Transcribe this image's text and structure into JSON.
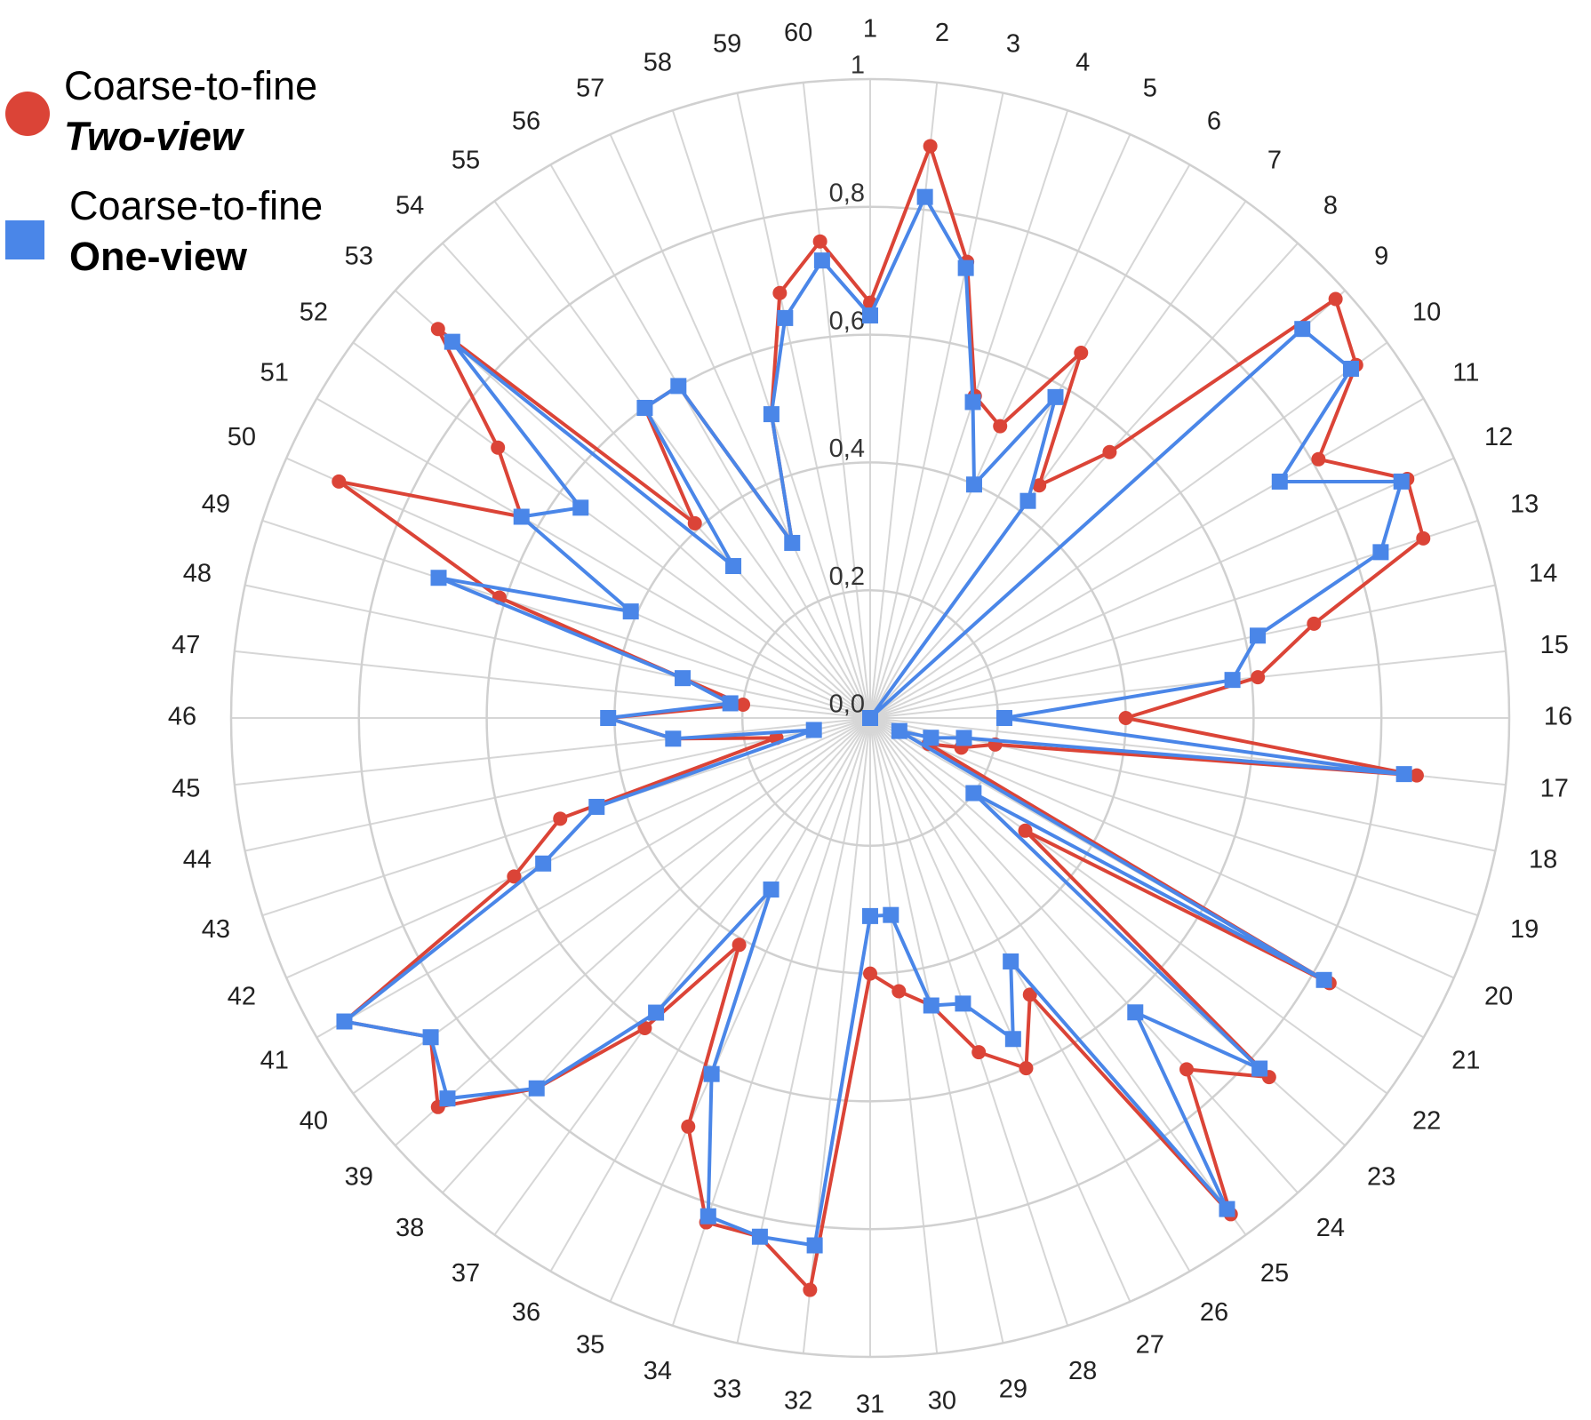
{
  "chart_data": {
    "type": "radar",
    "categories": [
      "1",
      "2",
      "3",
      "4",
      "5",
      "6",
      "7",
      "8",
      "9",
      "10",
      "11",
      "12",
      "13",
      "14",
      "15",
      "16",
      "17",
      "18",
      "19",
      "20",
      "21",
      "22",
      "23",
      "24",
      "25",
      "26",
      "27",
      "28",
      "29",
      "30",
      "31",
      "32",
      "33",
      "34",
      "35",
      "36",
      "37",
      "38",
      "39",
      "40",
      "41",
      "42",
      "43",
      "44",
      "45",
      "46",
      "47",
      "48",
      "49",
      "50",
      "51",
      "52",
      "53",
      "54",
      "55",
      "56",
      "57",
      "58",
      "59",
      "60"
    ],
    "ylim": [
      0,
      1
    ],
    "yticks": [
      {
        "value": 0,
        "label": "0,0"
      },
      {
        "value": 0.2,
        "label": "0,2"
      },
      {
        "value": 0.4,
        "label": "0,4"
      },
      {
        "value": 0.6,
        "label": "0,6"
      },
      {
        "value": 0.8,
        "label": "0,8"
      },
      1
    ],
    "grid": true,
    "legend": "upper left",
    "series": [
      {
        "name": [
          "Coarse-to-fine",
          "Two-view"
        ],
        "color": "#db4437",
        "marker": "circle",
        "values": [
          0.65,
          0.9,
          0.73,
          0.53,
          0.5,
          0.66,
          0.45,
          0.56,
          0.98,
          0.94,
          0.81,
          0.92,
          0.91,
          0.71,
          0.61,
          0.4,
          0.86,
          0.2,
          0.15,
          0.1,
          0.83,
          0.3,
          0.84,
          0.74,
          0.96,
          0.5,
          0.6,
          0.55,
          0.46,
          0.43,
          0.4,
          0.9,
          0.83,
          0.83,
          0.7,
          0.41,
          0.6,
          0.78,
          0.91,
          0.85,
          0.95,
          0.61,
          0.51,
          0.15,
          0.31,
          0.41,
          0.2,
          0.3,
          0.61,
          0.91,
          0.63,
          0.72,
          0.91,
          0.41,
          0.6,
          0.6,
          0.3,
          0.5,
          0.68,
          0.75
        ]
      },
      {
        "name": [
          "Coarse-to-fine",
          "One-view"
        ],
        "color": "#4a86e8",
        "marker": "square",
        "values": [
          0.63,
          0.82,
          0.72,
          0.52,
          0.4,
          0.58,
          0.42,
          0.0,
          0.91,
          0.93,
          0.74,
          0.91,
          0.84,
          0.62,
          0.57,
          0.21,
          0.84,
          0.15,
          0.1,
          0.05,
          0.82,
          0.2,
          0.82,
          0.62,
          0.95,
          0.44,
          0.55,
          0.47,
          0.46,
          0.31,
          0.31,
          0.83,
          0.83,
          0.82,
          0.61,
          0.31,
          0.57,
          0.78,
          0.89,
          0.85,
          0.95,
          0.56,
          0.45,
          0.09,
          0.31,
          0.41,
          0.22,
          0.3,
          0.71,
          0.41,
          0.63,
          0.56,
          0.88,
          0.32,
          0.6,
          0.6,
          0.3,
          0.5,
          0.64,
          0.72
        ]
      }
    ]
  }
}
